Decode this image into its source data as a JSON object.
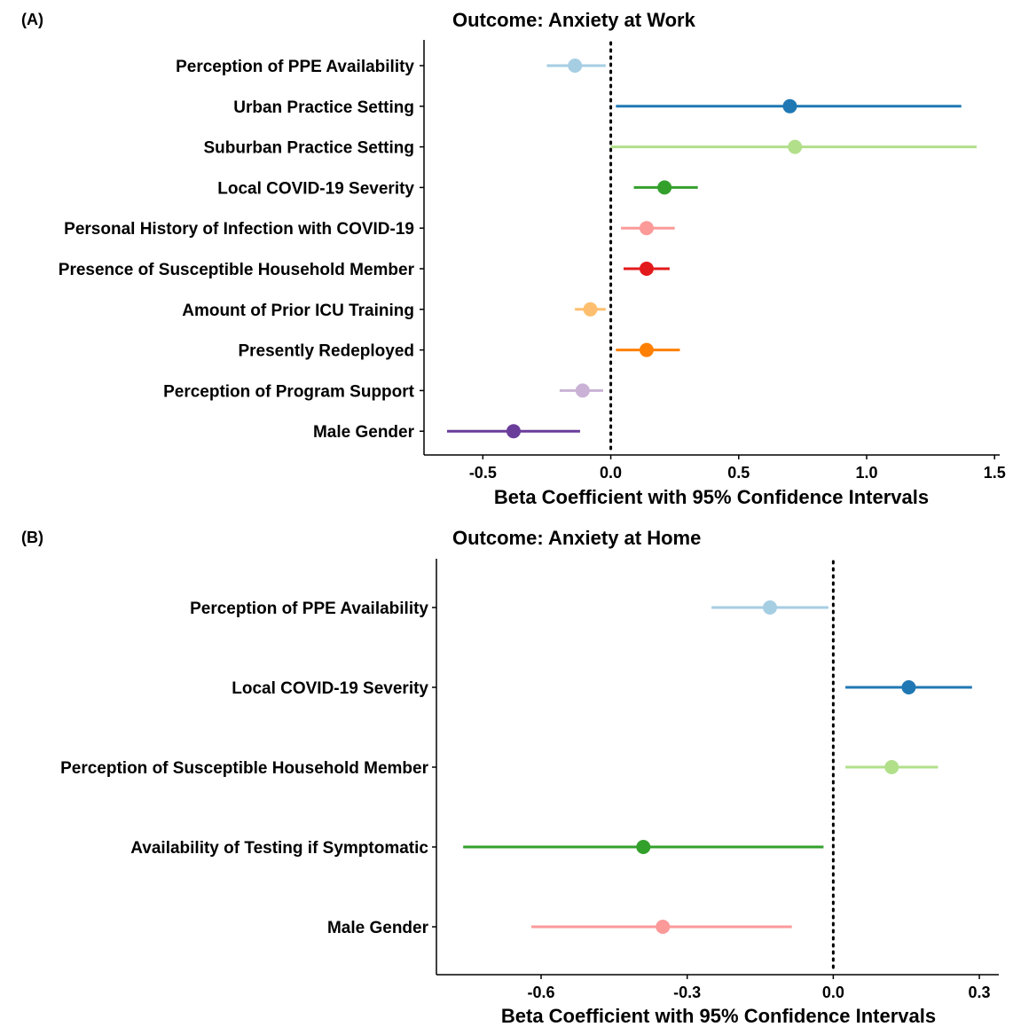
{
  "chart_data": [
    {
      "type": "forest",
      "panel_label": "(A)",
      "title": "Outcome: Anxiety at Work",
      "xlabel": "Beta Coefficient with 95% Confidence Intervals",
      "xlim": [
        -0.73,
        1.52
      ],
      "xticks": [
        -0.5,
        0.0,
        0.5,
        1.0,
        1.5
      ],
      "xtick_labels": [
        "-0.5",
        "0.0",
        "0.5",
        "1.0",
        "1.5"
      ],
      "reference_line": 0,
      "grid": false,
      "rows": [
        {
          "label": "Perception of PPE Availability",
          "estimate": -0.14,
          "ci_low": -0.25,
          "ci_high": -0.02,
          "color": "#a6cee3"
        },
        {
          "label": "Urban Practice Setting",
          "estimate": 0.7,
          "ci_low": 0.02,
          "ci_high": 1.37,
          "color": "#1f78b4"
        },
        {
          "label": "Suburban Practice Setting",
          "estimate": 0.72,
          "ci_low": 0.0,
          "ci_high": 1.43,
          "color": "#b2df8a"
        },
        {
          "label": "Local COVID-19 Severity",
          "estimate": 0.21,
          "ci_low": 0.09,
          "ci_high": 0.34,
          "color": "#33a02c"
        },
        {
          "label": "Personal History of Infection with COVID-19",
          "estimate": 0.14,
          "ci_low": 0.04,
          "ci_high": 0.25,
          "color": "#fb9a99"
        },
        {
          "label": "Presence of Susceptible Household Member",
          "estimate": 0.14,
          "ci_low": 0.05,
          "ci_high": 0.23,
          "color": "#e31a1c"
        },
        {
          "label": "Amount of Prior ICU Training",
          "estimate": -0.08,
          "ci_low": -0.14,
          "ci_high": -0.02,
          "color": "#fdbf6f"
        },
        {
          "label": "Presently Redeployed",
          "estimate": 0.14,
          "ci_low": 0.02,
          "ci_high": 0.27,
          "color": "#ff7f00"
        },
        {
          "label": "Perception of Program Support",
          "estimate": -0.11,
          "ci_low": -0.2,
          "ci_high": -0.03,
          "color": "#cab2d6"
        },
        {
          "label": "Male Gender",
          "estimate": -0.38,
          "ci_low": -0.64,
          "ci_high": -0.12,
          "color": "#6a3d9a"
        }
      ]
    },
    {
      "type": "forest",
      "panel_label": "(B)",
      "title": "Outcome: Anxiety at Home",
      "xlabel": "Beta Coefficient with 95% Confidence Intervals",
      "xlim": [
        -0.815,
        0.34
      ],
      "xticks": [
        -0.6,
        -0.3,
        0.0,
        0.3
      ],
      "xtick_labels": [
        "-0.6",
        "-0.3",
        "0.0",
        "0.3"
      ],
      "reference_line": 0,
      "grid": false,
      "rows": [
        {
          "label": "Perception of PPE Availability",
          "estimate": -0.13,
          "ci_low": -0.25,
          "ci_high": -0.01,
          "color": "#a6cee3"
        },
        {
          "label": "Local COVID-19 Severity",
          "estimate": 0.155,
          "ci_low": 0.025,
          "ci_high": 0.285,
          "color": "#1f78b4"
        },
        {
          "label": "Perception of Susceptible Household Member",
          "estimate": 0.12,
          "ci_low": 0.025,
          "ci_high": 0.215,
          "color": "#b2df8a"
        },
        {
          "label": "Availability of Testing if Symptomatic",
          "estimate": -0.39,
          "ci_low": -0.76,
          "ci_high": -0.02,
          "color": "#33a02c"
        },
        {
          "label": "Male Gender",
          "estimate": -0.35,
          "ci_low": -0.62,
          "ci_high": -0.085,
          "color": "#fb9a99"
        }
      ]
    }
  ]
}
